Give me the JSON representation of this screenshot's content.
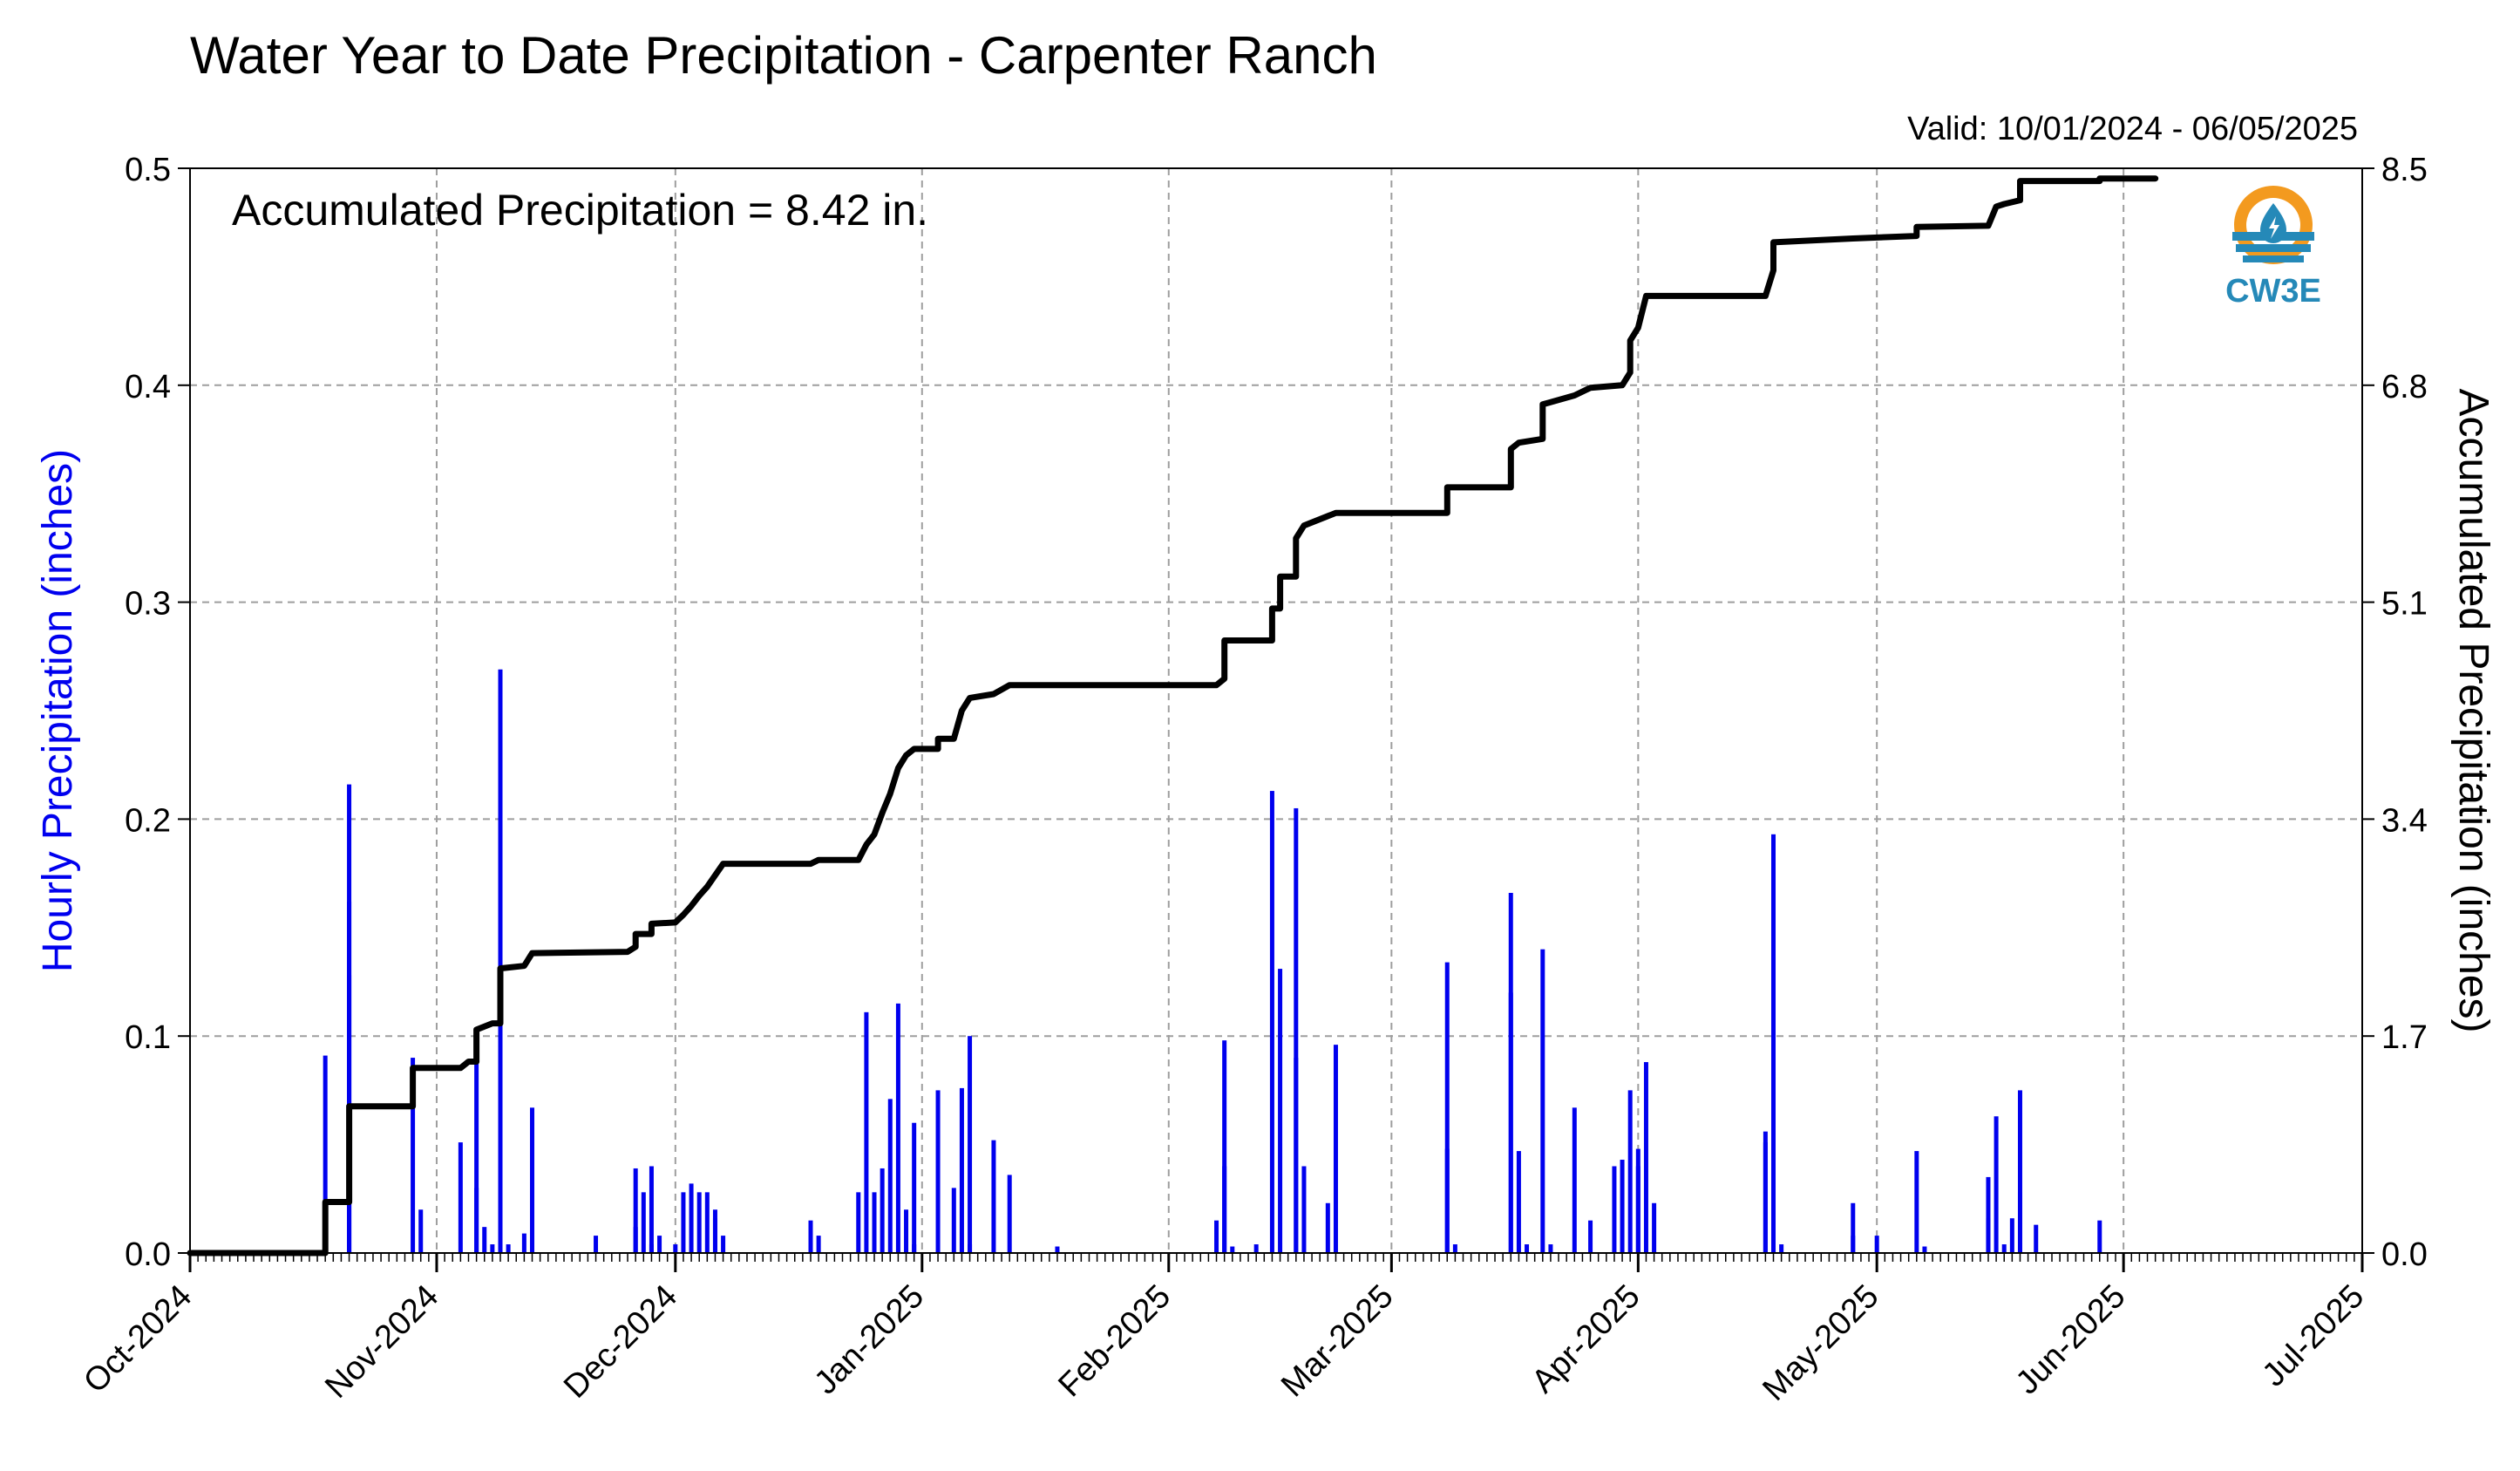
{
  "chart_data": {
    "type": "bar",
    "title": "Water Year to Date Precipitation - Carpenter Ranch",
    "valid_label": "Valid: 10/01/2024 - 06/05/2025",
    "annotation": "Accumulated Precipitation = 8.42 in.",
    "ylabel": "Hourly Precipitation (inches)",
    "ylabel_right": "Accumulated Precipitation (inches)",
    "x_range": [
      "2024-10-01",
      "2025-07-01"
    ],
    "ylim": [
      0,
      0.5
    ],
    "ylim_right": [
      0,
      8.5
    ],
    "x_ticks": [
      "Oct-2024",
      "Nov-2024",
      "Dec-2024",
      "Jan-2025",
      "Feb-2025",
      "Mar-2025",
      "Apr-2025",
      "May-2025",
      "Jun-2025",
      "Jul-2025"
    ],
    "x_tick_dates": [
      "2024-10-01",
      "2024-11-01",
      "2024-12-01",
      "2025-01-01",
      "2025-02-01",
      "2025-03-01",
      "2025-04-01",
      "2025-05-01",
      "2025-06-01",
      "2025-07-01"
    ],
    "y_ticks": [
      "0.0",
      "0.1",
      "0.2",
      "0.3",
      "0.4",
      "0.5"
    ],
    "y_ticks_right": [
      "0.0",
      "1.7",
      "3.4",
      "5.1",
      "6.8",
      "8.5"
    ],
    "grid": true,
    "hourly_series": {
      "name": "Hourly Precipitation",
      "color": "#0000ee",
      "points": [
        [
          "2024-10-18",
          0.018
        ],
        [
          "2024-10-18",
          0.091
        ],
        [
          "2024-10-21",
          0.216
        ],
        [
          "2024-10-21",
          0.162
        ],
        [
          "2024-10-21",
          0.128
        ],
        [
          "2024-10-29",
          0.09
        ],
        [
          "2024-10-30",
          0.02
        ],
        [
          "2024-11-04",
          0.051
        ],
        [
          "2024-11-06",
          0.093
        ],
        [
          "2024-11-06",
          0.03
        ],
        [
          "2024-11-07",
          0.012
        ],
        [
          "2024-11-08",
          0.004
        ],
        [
          "2024-11-09",
          0.269
        ],
        [
          "2024-11-09",
          0.1
        ],
        [
          "2024-11-10",
          0.004
        ],
        [
          "2024-11-12",
          0.009
        ],
        [
          "2024-11-13",
          0.067
        ],
        [
          "2024-11-21",
          0.008
        ],
        [
          "2024-11-26",
          0.012
        ],
        [
          "2024-11-26",
          0.039
        ],
        [
          "2024-11-27",
          0.028
        ],
        [
          "2024-11-28",
          0.004
        ],
        [
          "2024-11-28",
          0.04
        ],
        [
          "2024-11-29",
          0.008
        ],
        [
          "2024-12-01",
          0.004
        ],
        [
          "2024-12-02",
          0.028
        ],
        [
          "2024-12-03",
          0.032
        ],
        [
          "2024-12-04",
          0.028
        ],
        [
          "2024-12-05",
          0.028
        ],
        [
          "2024-12-06",
          0.02
        ],
        [
          "2024-12-06",
          0.016
        ],
        [
          "2024-12-07",
          0.008
        ],
        [
          "2024-12-18",
          0.015
        ],
        [
          "2024-12-19",
          0.008
        ],
        [
          "2024-12-24",
          0.028
        ],
        [
          "2024-12-25",
          0.111
        ],
        [
          "2024-12-26",
          0.028
        ],
        [
          "2024-12-27",
          0.039
        ],
        [
          "2024-12-28",
          0.071
        ],
        [
          "2024-12-29",
          0.115
        ],
        [
          "2024-12-30",
          0.02
        ],
        [
          "2024-12-31",
          0.06
        ],
        [
          "2024-12-31",
          0.004
        ],
        [
          "2025-01-03",
          0.075
        ],
        [
          "2025-01-05",
          0.03
        ],
        [
          "2025-01-06",
          0.076
        ],
        [
          "2025-01-07",
          0.1
        ],
        [
          "2025-01-07",
          0.004
        ],
        [
          "2025-01-10",
          0.052
        ],
        [
          "2025-01-12",
          0.036
        ],
        [
          "2025-01-18",
          0.003
        ],
        [
          "2025-02-07",
          0.015
        ],
        [
          "2025-02-08",
          0.098
        ],
        [
          "2025-02-08",
          0.04
        ],
        [
          "2025-02-09",
          0.003
        ],
        [
          "2025-02-12",
          0.004
        ],
        [
          "2025-02-14",
          0.213
        ],
        [
          "2025-02-15",
          0.131
        ],
        [
          "2025-02-17",
          0.205
        ],
        [
          "2025-02-17",
          0.09
        ],
        [
          "2025-02-18",
          0.04
        ],
        [
          "2025-02-21",
          0.023
        ],
        [
          "2025-02-22",
          0.096
        ],
        [
          "2025-03-08",
          0.134
        ],
        [
          "2025-03-08",
          0.048
        ],
        [
          "2025-03-09",
          0.004
        ],
        [
          "2025-03-16",
          0.166
        ],
        [
          "2025-03-16",
          0.12
        ],
        [
          "2025-03-17",
          0.047
        ],
        [
          "2025-03-18",
          0.004
        ],
        [
          "2025-03-20",
          0.14
        ],
        [
          "2025-03-21",
          0.004
        ],
        [
          "2025-03-24",
          0.067
        ],
        [
          "2025-03-26",
          0.015
        ],
        [
          "2025-03-29",
          0.04
        ],
        [
          "2025-03-30",
          0.043
        ],
        [
          "2025-03-31",
          0.075
        ],
        [
          "2025-04-01",
          0.04
        ],
        [
          "2025-04-01",
          0.048
        ],
        [
          "2025-04-02",
          0.088
        ],
        [
          "2025-04-03",
          0.023
        ],
        [
          "2025-04-17",
          0.051
        ],
        [
          "2025-04-17",
          0.056
        ],
        [
          "2025-04-18",
          0.193
        ],
        [
          "2025-04-19",
          0.004
        ],
        [
          "2025-04-28",
          0.023
        ],
        [
          "2025-04-28",
          0.008
        ],
        [
          "2025-05-01",
          0.008
        ],
        [
          "2025-05-06",
          0.047
        ],
        [
          "2025-05-07",
          0.003
        ],
        [
          "2025-05-15",
          0.035
        ],
        [
          "2025-05-15",
          0.016
        ],
        [
          "2025-05-16",
          0.063
        ],
        [
          "2025-05-17",
          0.004
        ],
        [
          "2025-05-18",
          0.016
        ],
        [
          "2025-05-19",
          0.075
        ],
        [
          "2025-05-19",
          0.028
        ],
        [
          "2025-05-21",
          0.013
        ],
        [
          "2025-05-29",
          0.015
        ]
      ]
    },
    "accumulated_series": {
      "name": "Accumulated Precipitation",
      "color": "#000000",
      "points": [
        [
          "2024-10-01",
          0.0
        ],
        [
          "2024-10-18",
          0.0
        ],
        [
          "2024-10-18",
          0.4
        ],
        [
          "2024-10-21",
          0.4
        ],
        [
          "2024-10-21",
          1.15
        ],
        [
          "2024-10-29",
          1.15
        ],
        [
          "2024-10-29",
          1.45
        ],
        [
          "2024-11-04",
          1.45
        ],
        [
          "2024-11-05",
          1.5
        ],
        [
          "2024-11-06",
          1.5
        ],
        [
          "2024-11-06",
          1.75
        ],
        [
          "2024-11-08",
          1.8
        ],
        [
          "2024-11-09",
          1.8
        ],
        [
          "2024-11-09",
          2.23
        ],
        [
          "2024-11-12",
          2.25
        ],
        [
          "2024-11-13",
          2.35
        ],
        [
          "2024-11-25",
          2.36
        ],
        [
          "2024-11-26",
          2.4
        ],
        [
          "2024-11-26",
          2.5
        ],
        [
          "2024-11-28",
          2.5
        ],
        [
          "2024-11-28",
          2.58
        ],
        [
          "2024-12-01",
          2.59
        ],
        [
          "2024-12-02",
          2.65
        ],
        [
          "2024-12-03",
          2.72
        ],
        [
          "2024-12-04",
          2.8
        ],
        [
          "2024-12-05",
          2.87
        ],
        [
          "2024-12-07",
          3.05
        ],
        [
          "2024-12-18",
          3.05
        ],
        [
          "2024-12-19",
          3.08
        ],
        [
          "2024-12-24",
          3.08
        ],
        [
          "2024-12-25",
          3.2
        ],
        [
          "2024-12-26",
          3.28
        ],
        [
          "2024-12-27",
          3.45
        ],
        [
          "2024-12-28",
          3.6
        ],
        [
          "2024-12-29",
          3.8
        ],
        [
          "2024-12-30",
          3.9
        ],
        [
          "2024-12-31",
          3.95
        ],
        [
          "2025-01-03",
          3.95
        ],
        [
          "2025-01-03",
          4.03
        ],
        [
          "2025-01-05",
          4.03
        ],
        [
          "2025-01-06",
          4.25
        ],
        [
          "2025-01-07",
          4.35
        ],
        [
          "2025-01-10",
          4.38
        ],
        [
          "2025-01-12",
          4.45
        ],
        [
          "2025-02-07",
          4.45
        ],
        [
          "2025-02-08",
          4.5
        ],
        [
          "2025-02-08",
          4.8
        ],
        [
          "2025-02-14",
          4.8
        ],
        [
          "2025-02-14",
          5.05
        ],
        [
          "2025-02-15",
          5.05
        ],
        [
          "2025-02-15",
          5.3
        ],
        [
          "2025-02-17",
          5.3
        ],
        [
          "2025-02-17",
          5.6
        ],
        [
          "2025-02-18",
          5.7
        ],
        [
          "2025-02-22",
          5.8
        ],
        [
          "2025-03-08",
          5.8
        ],
        [
          "2025-03-08",
          6.0
        ],
        [
          "2025-03-16",
          6.0
        ],
        [
          "2025-03-16",
          6.3
        ],
        [
          "2025-03-17",
          6.35
        ],
        [
          "2025-03-20",
          6.38
        ],
        [
          "2025-03-20",
          6.65
        ],
        [
          "2025-03-24",
          6.72
        ],
        [
          "2025-03-26",
          6.78
        ],
        [
          "2025-03-30",
          6.8
        ],
        [
          "2025-03-31",
          6.9
        ],
        [
          "2025-03-31",
          7.15
        ],
        [
          "2025-04-01",
          7.25
        ],
        [
          "2025-04-02",
          7.5
        ],
        [
          "2025-04-17",
          7.5
        ],
        [
          "2025-04-18",
          7.7
        ],
        [
          "2025-04-18",
          7.92
        ],
        [
          "2025-04-28",
          7.95
        ],
        [
          "2025-05-06",
          7.97
        ],
        [
          "2025-05-06",
          8.04
        ],
        [
          "2025-05-15",
          8.05
        ],
        [
          "2025-05-16",
          8.2
        ],
        [
          "2025-05-17",
          8.22
        ],
        [
          "2025-05-19",
          8.25
        ],
        [
          "2025-05-19",
          8.4
        ],
        [
          "2025-05-29",
          8.4
        ],
        [
          "2025-05-29",
          8.42
        ],
        [
          "2025-06-05",
          8.42
        ]
      ]
    },
    "logo_text": "CW3E",
    "colors": {
      "axis": "#000000",
      "grid": "#9e9e9e",
      "left_axis_label": "#0000ee",
      "logo_orange": "#f39a1f",
      "logo_blue": "#2589b8"
    }
  }
}
